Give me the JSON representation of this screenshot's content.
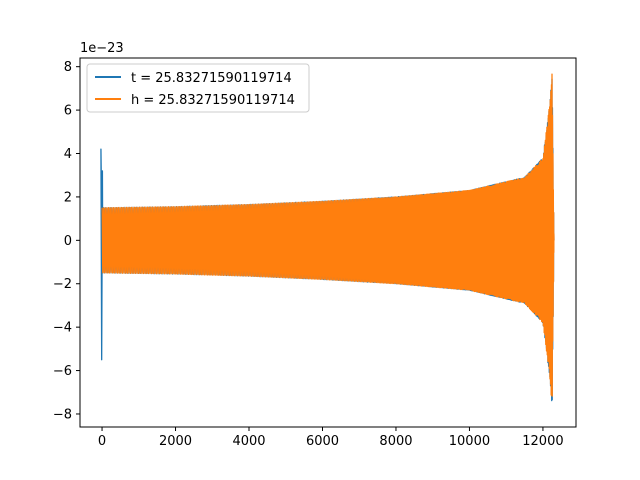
{
  "chart_data": {
    "type": "line",
    "title": "",
    "xlabel": "",
    "ylabel": "",
    "y_offset_text": "1e−23",
    "xlim": [
      -600,
      12900
    ],
    "ylim": [
      -8.6,
      8.4
    ],
    "x_ticks": [
      0,
      2000,
      4000,
      6000,
      8000,
      10000,
      12000
    ],
    "x_tick_labels": [
      "0",
      "2000",
      "4000",
      "6000",
      "8000",
      "10000",
      "12000"
    ],
    "y_ticks": [
      -8,
      -6,
      -4,
      -2,
      0,
      2,
      4,
      6,
      8
    ],
    "y_tick_labels": [
      "−8",
      "−6",
      "−4",
      "−2",
      "0",
      "2",
      "4",
      "6",
      "8"
    ],
    "grid": false,
    "legend_position": "top-left",
    "series": [
      {
        "name": "t = 25.83271590119714",
        "color": "#1f77b4",
        "description": "oscillating waveform with initial transient spike near x=0 (max ~4.2, min ~-5.5), then chirp with amplitude ~1.5 growing to ~7.8 near x~12250",
        "x_start": 0,
        "x_end": 12300,
        "initial_spike_max": 4.2,
        "initial_spike_min": -5.5,
        "amplitude_envelope": [
          [
            0,
            1.5
          ],
          [
            2000,
            1.55
          ],
          [
            4000,
            1.65
          ],
          [
            6000,
            1.8
          ],
          [
            8000,
            2.0
          ],
          [
            10000,
            2.3
          ],
          [
            11500,
            2.9
          ],
          [
            12000,
            3.8
          ],
          [
            12200,
            6.5
          ],
          [
            12250,
            7.8
          ],
          [
            12300,
            0
          ]
        ]
      },
      {
        "name": "h = 25.83271590119714",
        "color": "#ff7f0e",
        "description": "chirp waveform overlapping the blue series, amplitude ~1.5 growing to ~7.8 near x~12250",
        "x_start": 0,
        "x_end": 12300,
        "amplitude_envelope": [
          [
            0,
            1.5
          ],
          [
            2000,
            1.55
          ],
          [
            4000,
            1.65
          ],
          [
            6000,
            1.8
          ],
          [
            8000,
            2.0
          ],
          [
            10000,
            2.3
          ],
          [
            11500,
            2.9
          ],
          [
            12000,
            3.8
          ],
          [
            12200,
            6.5
          ],
          [
            12250,
            7.8
          ],
          [
            12300,
            0
          ]
        ]
      }
    ]
  }
}
